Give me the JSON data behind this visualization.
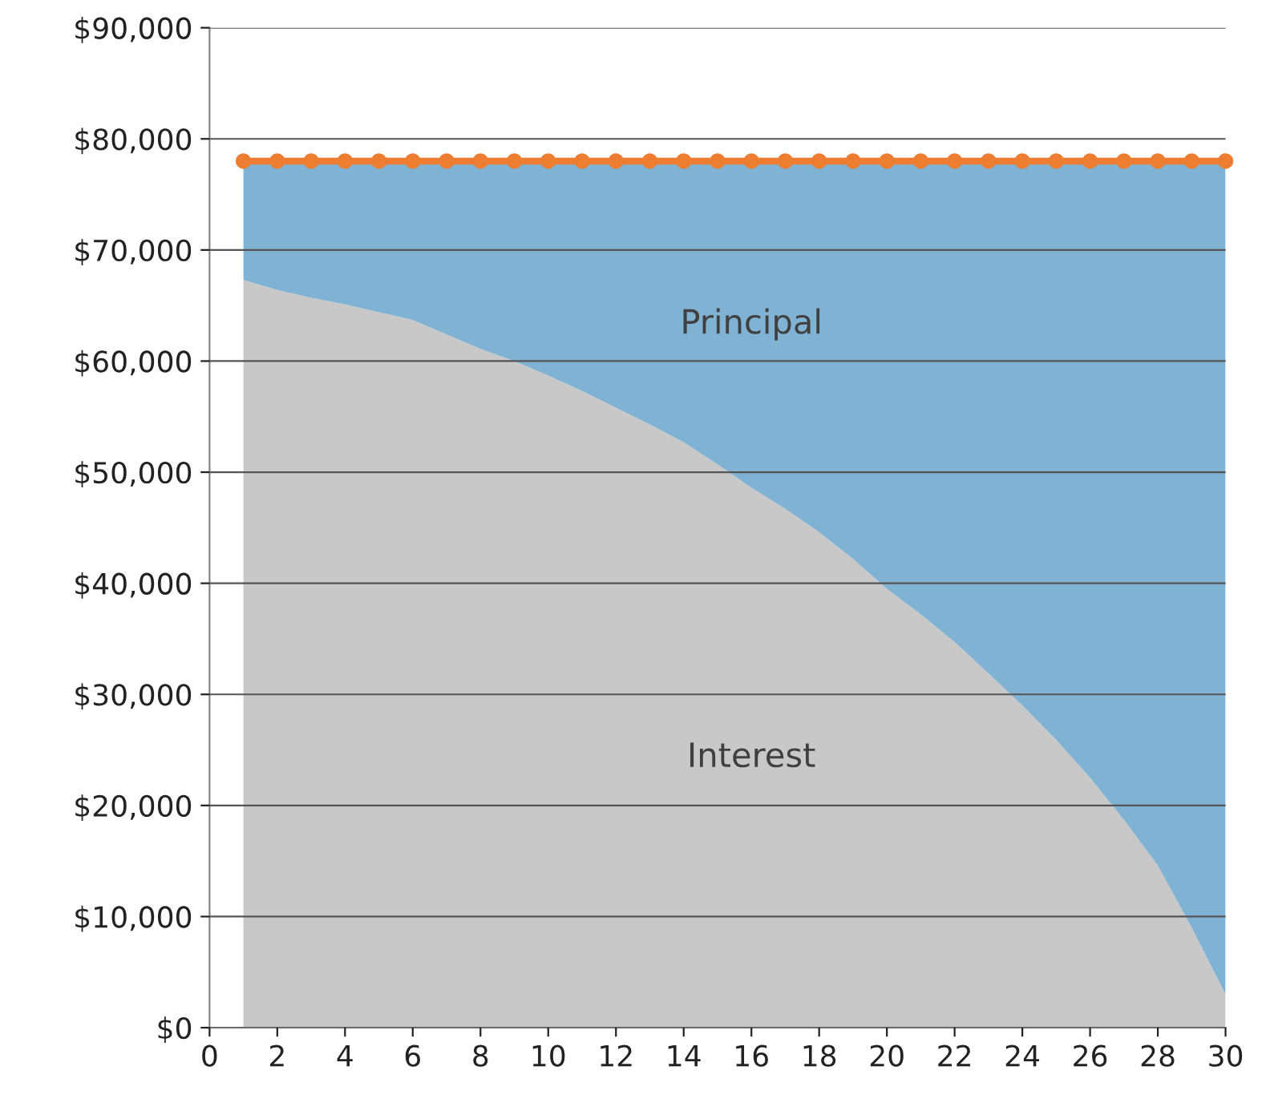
{
  "chart_data": {
    "type": "area",
    "stacked": true,
    "x": [
      1,
      2,
      3,
      4,
      5,
      6,
      7,
      8,
      9,
      10,
      11,
      12,
      13,
      14,
      15,
      16,
      17,
      18,
      19,
      20,
      21,
      22,
      23,
      24,
      25,
      26,
      27,
      28,
      29,
      30
    ],
    "series": [
      {
        "name": "Interest",
        "color": "#c8c8c8",
        "values": [
          67300,
          66400,
          65700,
          65100,
          64400,
          63700,
          62400,
          61100,
          60000,
          58700,
          57300,
          55800,
          54300,
          52700,
          50700,
          48600,
          46700,
          44600,
          42200,
          39500,
          37200,
          34700,
          31900,
          29000,
          25900,
          22500,
          18700,
          14600,
          9000,
          3000
        ]
      },
      {
        "name": "Principal",
        "color": "#7fb2d3",
        "values": [
          10700,
          11600,
          12300,
          12900,
          13600,
          14300,
          15600,
          16900,
          18000,
          19300,
          20700,
          22200,
          23700,
          25300,
          27300,
          29400,
          31300,
          33400,
          35800,
          38500,
          40800,
          43300,
          46100,
          49000,
          52100,
          55500,
          59300,
          63400,
          69000,
          75000
        ]
      },
      {
        "type": "line",
        "color": "#ed7d31",
        "marker": "circle",
        "values": [
          78000,
          78000,
          78000,
          78000,
          78000,
          78000,
          78000,
          78000,
          78000,
          78000,
          78000,
          78000,
          78000,
          78000,
          78000,
          78000,
          78000,
          78000,
          78000,
          78000,
          78000,
          78000,
          78000,
          78000,
          78000,
          78000,
          78000,
          78000,
          78000,
          78000
        ]
      }
    ],
    "xlim": [
      0,
      30
    ],
    "xticks": [
      0,
      2,
      4,
      6,
      8,
      10,
      12,
      14,
      16,
      18,
      20,
      22,
      24,
      26,
      28,
      30
    ],
    "ylim": [
      0,
      90000
    ],
    "yticks": [
      {
        "value": 0,
        "label": "$0"
      },
      {
        "value": 10000,
        "label": "$10,000"
      },
      {
        "value": 20000,
        "label": "$20,000"
      },
      {
        "value": 30000,
        "label": "$30,000"
      },
      {
        "value": 40000,
        "label": "$40,000"
      },
      {
        "value": 50000,
        "label": "$50,000"
      },
      {
        "value": 60000,
        "label": "$60,000"
      },
      {
        "value": 70000,
        "label": "$70,000"
      },
      {
        "value": 80000,
        "label": "$80,000"
      },
      {
        "value": 90000,
        "label": "$90,000"
      }
    ],
    "grid": "y"
  }
}
